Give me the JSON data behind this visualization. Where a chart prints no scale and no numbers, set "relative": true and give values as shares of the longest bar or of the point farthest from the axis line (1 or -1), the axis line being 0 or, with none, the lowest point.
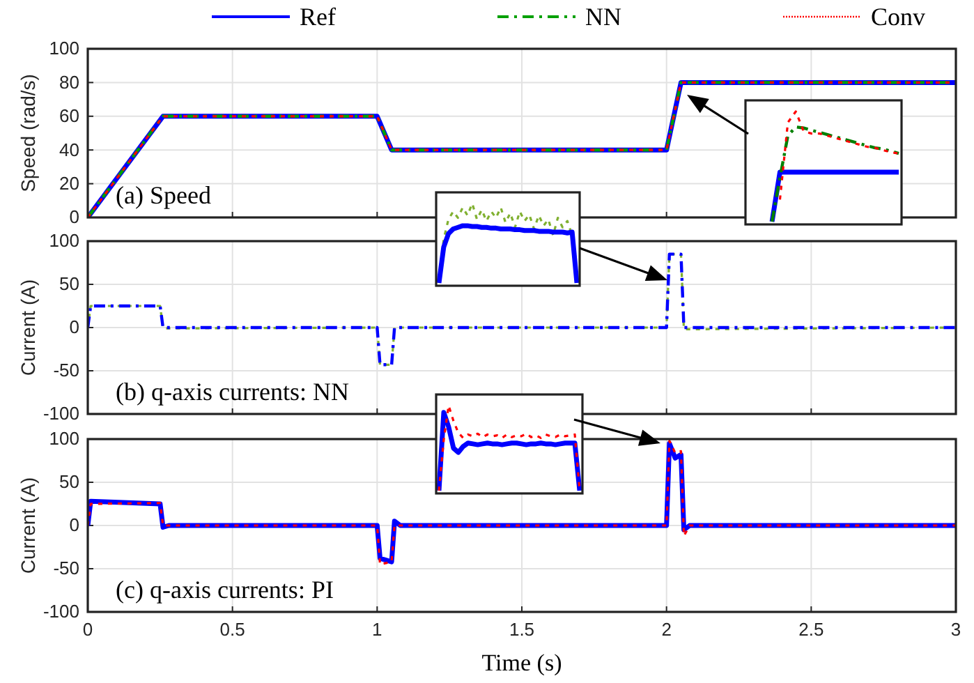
{
  "chart_data": [
    {
      "type": "line",
      "ylabel": "Speed (rad/s)",
      "xlim": [
        0,
        3
      ],
      "xticks": [
        0,
        0.5,
        1,
        1.5,
        2,
        2.5,
        3
      ],
      "ylim": [
        0,
        100
      ],
      "yticks": [
        0,
        20,
        40,
        60,
        80,
        100
      ],
      "grid": true,
      "tick_labels": "y",
      "legend": "top",
      "annotations": [
        "(a) Speed"
      ],
      "series": [
        {
          "name": "Ref",
          "color": "#0000ff",
          "line_style": "solid",
          "x": [
            0,
            0.26,
            1.0,
            1.05,
            2.0,
            2.05,
            3
          ],
          "values": [
            0,
            60,
            60,
            40,
            40,
            80,
            80
          ]
        },
        {
          "name": "NN",
          "color": "#00a000",
          "line_style": "dashed",
          "x": [
            0,
            0.26,
            1.0,
            1.05,
            2.0,
            2.05,
            3
          ],
          "values": [
            0,
            60,
            60,
            40,
            40,
            80,
            80
          ]
        },
        {
          "name": "Conv",
          "color": "#ff0000",
          "line_style": "dotted",
          "x": [
            0,
            0.26,
            1.0,
            1.05,
            2.0,
            2.05,
            3
          ],
          "values": [
            0,
            60,
            60,
            40,
            40,
            80,
            80
          ]
        }
      ]
    },
    {
      "type": "line",
      "ylabel": "Current (A)",
      "xlim": [
        0,
        3
      ],
      "xticks": [
        0,
        0.5,
        1,
        1.5,
        2,
        2.5,
        3
      ],
      "ylim": [
        -100,
        100
      ],
      "yticks": [
        -100,
        -50,
        0,
        50,
        100
      ],
      "grid": true,
      "tick_labels": "y",
      "annotations": [
        "(b) q-axis currents: NN"
      ],
      "series": [
        {
          "color": "#80b030",
          "line_style": "dotted",
          "x": [
            0,
            0.01,
            0.25,
            0.26,
            1.0,
            1.01,
            1.05,
            1.06,
            2.0,
            2.01,
            2.05,
            2.06,
            3
          ],
          "values": [
            0,
            25,
            25,
            -1,
            0,
            -43,
            -43,
            0,
            0,
            85,
            85,
            -2,
            0
          ]
        },
        {
          "color": "#0000ff",
          "line_style": "dashed",
          "x": [
            0,
            0.01,
            0.25,
            0.26,
            1.0,
            1.01,
            1.05,
            1.06,
            2.0,
            2.01,
            2.05,
            2.06,
            3
          ],
          "values": [
            0,
            25,
            25,
            0,
            0,
            -43,
            -43,
            0,
            0,
            85,
            85,
            0,
            0
          ]
        }
      ]
    },
    {
      "type": "line",
      "ylabel": "Current (A)",
      "xlabel": "Time (s)",
      "xlim": [
        0,
        3
      ],
      "xticks": [
        0,
        0.5,
        1,
        1.5,
        2,
        2.5,
        3
      ],
      "ylim": [
        -100,
        100
      ],
      "yticks": [
        -100,
        -50,
        0,
        50,
        100
      ],
      "grid": true,
      "annotations": [
        "(c) q-axis currents: PI"
      ],
      "series": [
        {
          "color": "#0000ff",
          "line_style": "solid",
          "x": [
            0,
            0.01,
            0.25,
            0.26,
            0.28,
            1.0,
            1.01,
            1.05,
            1.06,
            1.08,
            2.0,
            2.01,
            2.03,
            2.05,
            2.06,
            2.08,
            3
          ],
          "values": [
            0,
            28,
            25,
            -2,
            0,
            0,
            -38,
            -42,
            5,
            0,
            0,
            95,
            78,
            82,
            -5,
            0,
            0
          ]
        },
        {
          "color": "#ff0000",
          "line_style": "dotted",
          "x": [
            0,
            0.01,
            0.25,
            0.26,
            0.28,
            1.0,
            1.01,
            1.05,
            1.06,
            1.08,
            2.0,
            2.01,
            2.03,
            2.05,
            2.06,
            2.08,
            3
          ],
          "values": [
            0,
            25,
            26,
            0,
            0,
            0,
            -45,
            -42,
            0,
            0,
            0,
            98,
            84,
            86,
            -12,
            0,
            0
          ]
        }
      ]
    },
    {
      "type": "line",
      "relative": true,
      "categories": [
        null,
        null,
        null,
        null,
        null,
        null,
        null,
        null,
        null,
        null,
        null,
        null,
        null,
        null,
        null,
        null,
        null,
        null,
        null,
        null
      ],
      "series": [
        {
          "color": "#0000ff",
          "line_style": "solid",
          "values": [
            null,
            null,
            null,
            0,
            0.45,
            0.45,
            0.45,
            0.45,
            0.45,
            0.45,
            0.45,
            0.45,
            0.45,
            0.45,
            0.45,
            0.45,
            0.45,
            0.45,
            0.45,
            0.45
          ]
        },
        {
          "color": "#008000",
          "line_style": "dashed",
          "values": [
            null,
            null,
            null,
            0,
            0.4,
            0.78,
            0.86,
            0.85,
            0.83,
            0.81,
            0.79,
            0.77,
            0.75,
            0.73,
            0.71,
            0.69,
            0.67,
            0.66,
            0.64,
            0.62
          ]
        },
        {
          "color": "#ff0000",
          "line_style": "dotted",
          "values": [
            null,
            null,
            null,
            null,
            0.2,
            0.9,
            1,
            0.82,
            0.8,
            0.8,
            0.78,
            0.76,
            0.74,
            0.72,
            0.7,
            0.68,
            0.67,
            0.65,
            0.63,
            0.62
          ]
        }
      ]
    },
    {
      "type": "line",
      "relative": true,
      "categories": [
        null,
        null,
        null,
        null,
        null,
        null,
        null,
        null,
        null,
        null,
        null,
        null,
        null,
        null,
        null,
        null,
        null,
        null,
        null,
        null,
        null,
        null,
        null,
        null,
        null,
        null,
        null,
        null,
        null,
        null
      ],
      "series": [
        {
          "color": "#80b030",
          "line_style": "dotted",
          "values": [
            0,
            0.55,
            0.8,
            0.9,
            0.82,
            0.95,
            0.85,
            1,
            0.8,
            0.92,
            0.78,
            0.9,
            0.82,
            0.95,
            0.76,
            0.88,
            0.7,
            0.9,
            0.78,
            0.86,
            0.68,
            0.85,
            0.72,
            0.8,
            0.6,
            0.82,
            0.7,
            0.78,
            0.6,
            0
          ]
        },
        {
          "color": "#0000ff",
          "line_style": "solid",
          "values": [
            0,
            0.45,
            0.62,
            0.68,
            0.7,
            0.72,
            0.72,
            0.71,
            0.71,
            0.7,
            0.7,
            0.69,
            0.69,
            0.68,
            0.68,
            0.68,
            0.67,
            0.67,
            0.66,
            0.66,
            0.66,
            0.65,
            0.65,
            0.65,
            0.64,
            0.64,
            0.64,
            0.63,
            0.64,
            0
          ]
        }
      ]
    },
    {
      "type": "line",
      "relative": true,
      "categories": [
        null,
        null,
        null,
        null,
        null,
        null,
        null,
        null,
        null,
        null,
        null,
        null,
        null,
        null,
        null,
        null,
        null,
        null,
        null,
        null,
        null,
        null,
        null,
        null,
        null,
        null,
        null,
        null,
        null,
        null
      ],
      "series": [
        {
          "color": "#0000ff",
          "line_style": "solid",
          "values": [
            0,
            0.92,
            0.75,
            0.5,
            0.45,
            0.52,
            0.56,
            0.55,
            0.54,
            0.55,
            0.56,
            0.55,
            0.55,
            0.54,
            0.55,
            0.56,
            0.56,
            0.55,
            0.54,
            0.55,
            0.55,
            0.56,
            0.55,
            0.55,
            0.54,
            0.55,
            0.56,
            0.56,
            0.56,
            0
          ]
        },
        {
          "color": "#ff0000",
          "line_style": "dotted",
          "values": [
            0,
            0.6,
            1,
            0.82,
            0.68,
            0.62,
            0.66,
            0.64,
            0.67,
            0.63,
            0.66,
            0.64,
            0.65,
            0.62,
            0.66,
            0.63,
            0.65,
            0.64,
            0.67,
            0.63,
            0.65,
            0.62,
            0.66,
            0.64,
            0.63,
            0.66,
            0.64,
            0.65,
            0.66,
            0
          ]
        }
      ]
    }
  ]
}
